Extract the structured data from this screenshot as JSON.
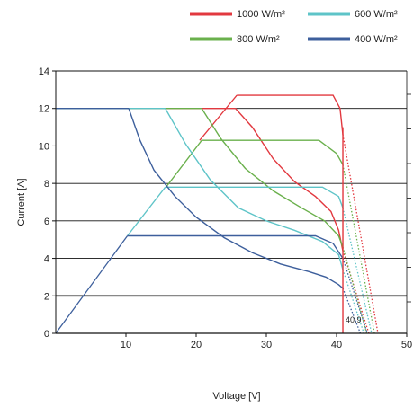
{
  "chart_data": {
    "type": "line",
    "title": "",
    "xlabel": "Voltage [V]",
    "ylabel": "Current [A]",
    "xlim": [
      0,
      50
    ],
    "ylim": [
      0,
      14
    ],
    "x_ticks": [
      10,
      20,
      30,
      40,
      50
    ],
    "y_ticks": [
      0,
      2,
      4,
      6,
      8,
      10,
      12,
      14
    ],
    "grid": "horizontal",
    "legend_position": "top-right",
    "annotation": "40.9",
    "annotation_x": 40.9,
    "series": [
      {
        "name": "1000 W/m²",
        "color": "#e2383f",
        "isc_line": [
          [
            0,
            12
          ],
          [
            25.6,
            12
          ]
        ],
        "curve": [
          [
            25.6,
            12
          ],
          [
            28,
            11
          ],
          [
            31,
            9.3
          ],
          [
            34,
            8.1
          ],
          [
            37,
            7.3
          ],
          [
            39.2,
            6.5
          ],
          [
            40.3,
            5.5
          ],
          [
            40.9,
            4.4
          ]
        ],
        "load_line": [
          [
            20.5,
            10.3
          ],
          [
            25.8,
            12.7
          ]
        ],
        "power_line": [
          [
            25.8,
            12.7
          ],
          [
            39.5,
            12.7
          ],
          [
            40.5,
            12
          ],
          [
            40.9,
            10.6
          ]
        ],
        "projection": [
          [
            40.9,
            10.6
          ],
          [
            45.9,
            0
          ]
        ],
        "projection2": [
          [
            40.9,
            4.4
          ],
          [
            44.6,
            0
          ]
        ]
      },
      {
        "name": "800 W/m²",
        "color": "#6ab04c",
        "isc_line": [
          [
            0,
            12
          ],
          [
            20.8,
            12
          ]
        ],
        "curve": [
          [
            20.8,
            12
          ],
          [
            23.5,
            10.4
          ],
          [
            27,
            8.8
          ],
          [
            31,
            7.6
          ],
          [
            35,
            6.7
          ],
          [
            38.3,
            6
          ],
          [
            40.3,
            5.2
          ],
          [
            40.9,
            4.6
          ]
        ],
        "load_line": [
          [
            15.7,
            7.8
          ],
          [
            20.8,
            10.3
          ]
        ],
        "power_line": [
          [
            20.8,
            10.3
          ],
          [
            37.5,
            10.3
          ],
          [
            40,
            9.6
          ],
          [
            40.9,
            9
          ]
        ],
        "projection": [
          [
            40.9,
            9
          ],
          [
            45.4,
            0
          ]
        ],
        "projection2": [
          [
            40.9,
            4.6
          ],
          [
            44.3,
            0
          ]
        ]
      },
      {
        "name": "600 W/m²",
        "color": "#5ec4c8",
        "isc_line": [
          [
            0,
            12
          ],
          [
            15.6,
            12
          ]
        ],
        "curve": [
          [
            15.6,
            12
          ],
          [
            18.5,
            10.1
          ],
          [
            22,
            8.2
          ],
          [
            26,
            6.7
          ],
          [
            30,
            6
          ],
          [
            34,
            5.5
          ],
          [
            38,
            4.9
          ],
          [
            40.3,
            4.2
          ],
          [
            40.9,
            3.4
          ]
        ],
        "load_line": [
          [
            10.2,
            5.2
          ],
          [
            15.6,
            7.8
          ]
        ],
        "power_line": [
          [
            15.6,
            7.8
          ],
          [
            38,
            7.8
          ],
          [
            40.3,
            7.3
          ],
          [
            40.9,
            6.7
          ]
        ],
        "projection": [
          [
            40.9,
            6.7
          ],
          [
            45,
            0
          ]
        ],
        "projection2": [
          [
            40.9,
            3.4
          ],
          [
            43.9,
            0
          ]
        ]
      },
      {
        "name": "400 W/m²",
        "color": "#3d5f9c",
        "isc_line": [
          [
            0,
            12
          ],
          [
            10.4,
            12
          ]
        ],
        "curve": [
          [
            10.4,
            12
          ],
          [
            12,
            10.3
          ],
          [
            14,
            8.7
          ],
          [
            17,
            7.3
          ],
          [
            20,
            6.2
          ],
          [
            24,
            5.1
          ],
          [
            28,
            4.3
          ],
          [
            32,
            3.7
          ],
          [
            36,
            3.3
          ],
          [
            38.5,
            3
          ],
          [
            40.3,
            2.6
          ],
          [
            40.9,
            2.4
          ]
        ],
        "load_line": [
          [
            0,
            0
          ],
          [
            10.2,
            5.2
          ]
        ],
        "power_line": [
          [
            10.2,
            5.2
          ],
          [
            37,
            5.2
          ],
          [
            39.5,
            4.8
          ],
          [
            40.9,
            4
          ]
        ],
        "projection": [
          [
            40.9,
            4
          ],
          [
            44.4,
            0
          ]
        ],
        "projection2": [
          [
            40.9,
            2.4
          ],
          [
            43.4,
            0
          ]
        ]
      }
    ]
  }
}
